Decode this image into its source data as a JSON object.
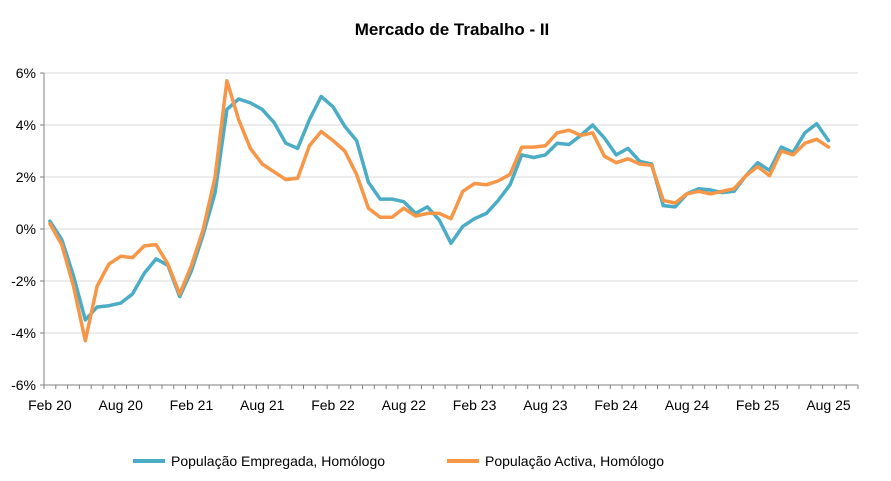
{
  "chart_data": {
    "type": "line",
    "title": "Mercado de Trabalho - II",
    "xlabel": "",
    "ylabel": "",
    "ylim": [
      -6,
      6
    ],
    "y_tick_values": [
      -6,
      -4,
      -2,
      0,
      2,
      4,
      6
    ],
    "y_tick_labels": [
      "-6%",
      "-4%",
      "-2%",
      "0%",
      "2%",
      "4%",
      "6%"
    ],
    "x_tick_labels": [
      "Feb 20",
      "Aug 20",
      "Feb 21",
      "Aug 21",
      "Feb 22",
      "Aug 22",
      "Feb 23",
      "Aug 23",
      "Feb 24",
      "Aug 24",
      "Feb 25",
      "Aug 25"
    ],
    "x_tick_month_index": [
      0,
      6,
      12,
      18,
      24,
      30,
      36,
      42,
      48,
      54,
      60,
      66
    ],
    "x_month_count": 69,
    "legend_position": "bottom",
    "colors": {
      "s0": "#4BACC6",
      "s1": "#F79646"
    },
    "series": [
      {
        "name": "População Empregada, Homólogo",
        "values": [
          0.3,
          -0.4,
          -1.8,
          -3.5,
          -3.0,
          -2.95,
          -2.85,
          -2.5,
          -1.7,
          -1.15,
          -1.4,
          -2.6,
          -1.6,
          -0.2,
          1.4,
          4.6,
          5.0,
          4.85,
          4.6,
          4.1,
          3.3,
          3.1,
          4.2,
          5.1,
          4.7,
          3.95,
          3.4,
          1.8,
          1.15,
          1.15,
          1.05,
          0.6,
          0.85,
          0.35,
          -0.55,
          0.1,
          0.4,
          0.6,
          1.1,
          1.7,
          2.85,
          2.75,
          2.85,
          3.3,
          3.25,
          3.6,
          4.0,
          3.5,
          2.85,
          3.1,
          2.6,
          2.5,
          0.9,
          0.85,
          1.35,
          1.55,
          1.5,
          1.4,
          1.45,
          2.05,
          2.55,
          2.25,
          3.15,
          2.95,
          3.7,
          4.05,
          3.4
        ]
      },
      {
        "name": "População Activa, Homólogo",
        "values": [
          0.2,
          -0.6,
          -2.2,
          -4.3,
          -2.2,
          -1.35,
          -1.05,
          -1.1,
          -0.65,
          -0.6,
          -1.35,
          -2.5,
          -1.4,
          0.0,
          2.0,
          5.7,
          4.2,
          3.1,
          2.5,
          2.2,
          1.9,
          1.95,
          3.2,
          3.75,
          3.4,
          3.0,
          2.1,
          0.8,
          0.45,
          0.45,
          0.8,
          0.5,
          0.6,
          0.6,
          0.4,
          1.45,
          1.75,
          1.7,
          1.85,
          2.1,
          3.15,
          3.15,
          3.2,
          3.7,
          3.8,
          3.6,
          3.7,
          2.8,
          2.55,
          2.7,
          2.5,
          2.45,
          1.1,
          1.0,
          1.35,
          1.45,
          1.35,
          1.45,
          1.55,
          2.05,
          2.4,
          2.05,
          3.0,
          2.85,
          3.3,
          3.45,
          3.15
        ]
      }
    ]
  }
}
